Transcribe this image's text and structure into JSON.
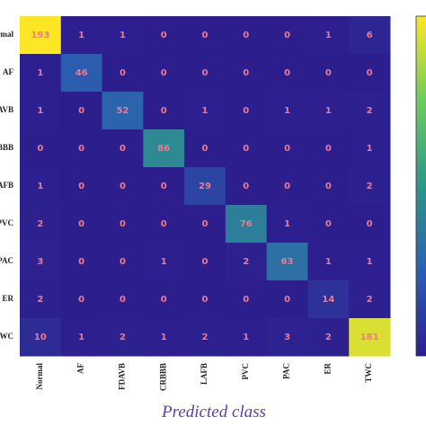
{
  "chart_data": {
    "type": "heatmap",
    "x_categories": [
      "Normal",
      "AF",
      "FDAVB",
      "CRBBB",
      "LAFB",
      "PVC",
      "PAC",
      "ER",
      "TWC"
    ],
    "y_categories": [
      "Normal",
      "AF",
      "FDAVB",
      "CRBBB",
      "LAFB",
      "PVC",
      "PAC",
      "ER",
      "TWC"
    ],
    "values": [
      [
        193,
        1,
        1,
        0,
        0,
        0,
        0,
        1,
        6
      ],
      [
        1,
        46,
        0,
        0,
        0,
        0,
        0,
        0,
        0
      ],
      [
        1,
        0,
        52,
        0,
        1,
        0,
        1,
        1,
        2
      ],
      [
        0,
        0,
        0,
        86,
        0,
        0,
        0,
        0,
        1
      ],
      [
        1,
        0,
        0,
        0,
        29,
        0,
        0,
        0,
        2
      ],
      [
        2,
        0,
        0,
        0,
        0,
        76,
        1,
        0,
        0
      ],
      [
        3,
        0,
        0,
        1,
        0,
        2,
        63,
        1,
        1
      ],
      [
        2,
        0,
        0,
        0,
        0,
        0,
        0,
        14,
        2
      ],
      [
        10,
        1,
        2,
        1,
        2,
        1,
        3,
        2,
        181
      ]
    ],
    "xlabel": "Predicted class",
    "colors": [
      "#2d1e8e",
      "#2c5fb0",
      "#2e958a",
      "#6ccb5f",
      "#fde725"
    ]
  }
}
